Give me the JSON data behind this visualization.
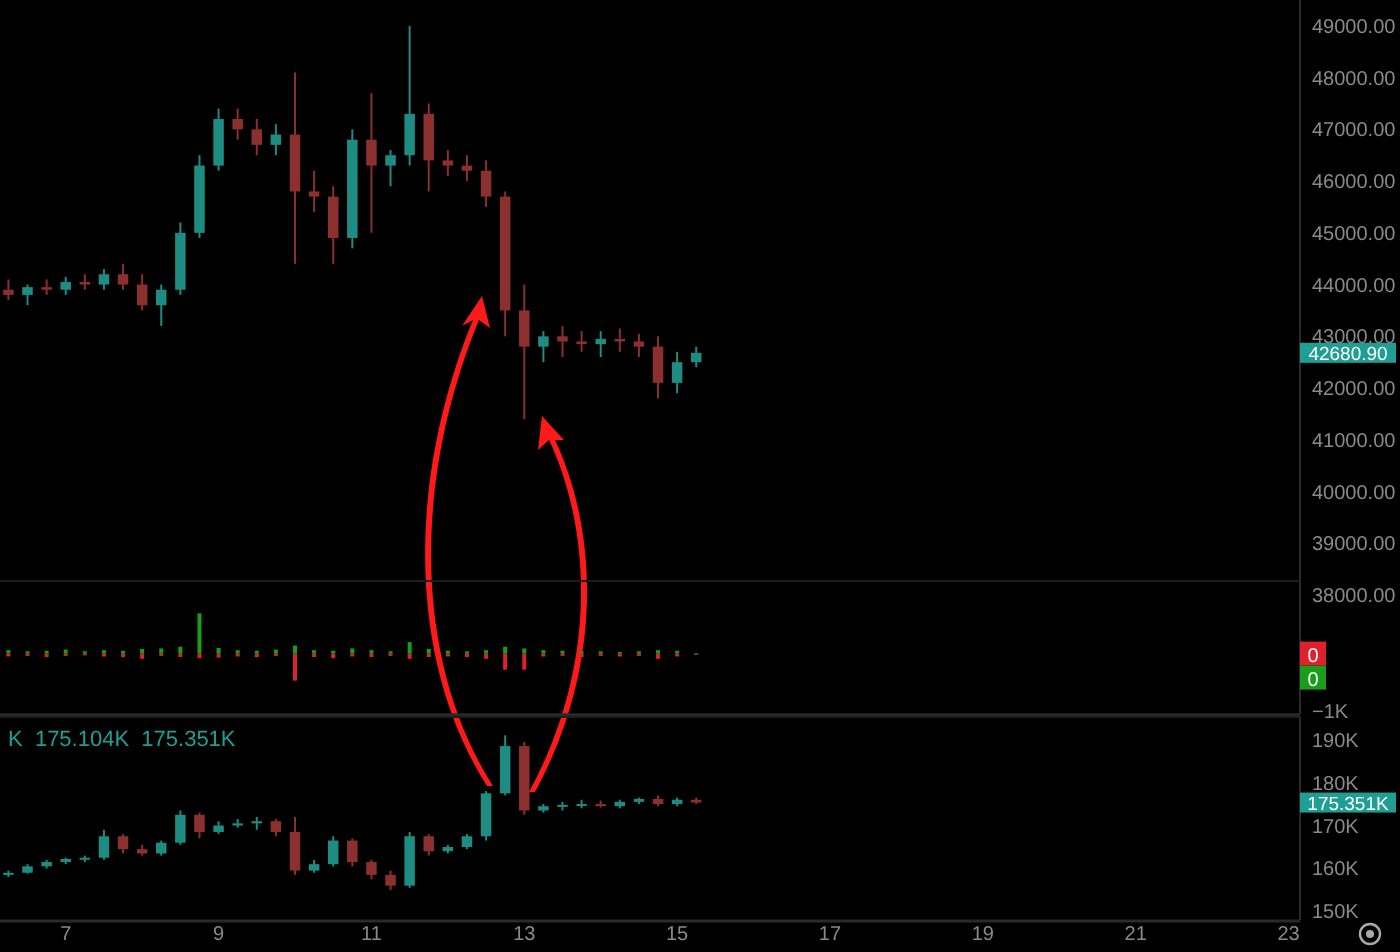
{
  "chart_data": [
    {
      "type": "candlestick",
      "xlim": [
        6.14,
        23.15
      ],
      "tick_labels": "y",
      "ylim": [
        35700,
        49500
      ],
      "yticks": [
        {
          "value": 38000,
          "label": "38000.00"
        },
        {
          "value": 39000,
          "label": "39000.00"
        },
        {
          "value": 40000,
          "label": "40000.00"
        },
        {
          "value": 41000,
          "label": "41000.00"
        },
        {
          "value": 42000,
          "label": "42000.00"
        },
        {
          "value": 43000,
          "label": "43000.00"
        },
        {
          "value": 44000,
          "label": "44000.00"
        },
        {
          "value": 45000,
          "label": "45000.00"
        },
        {
          "value": 46000,
          "label": "46000.00"
        },
        {
          "value": 47000,
          "label": "47000.00"
        },
        {
          "value": 48000,
          "label": "48000.00"
        },
        {
          "value": 49000,
          "label": "49000.00"
        }
      ],
      "x": [
        6.25,
        6.5,
        6.75,
        7,
        7.25,
        7.5,
        7.75,
        8,
        8.25,
        8.5,
        8.75,
        9,
        9.25,
        9.5,
        9.75,
        10,
        10.25,
        10.5,
        10.75,
        11,
        11.25,
        11.5,
        11.75,
        12,
        12.25,
        12.5,
        12.75,
        13,
        13.25,
        13.5,
        13.75,
        14,
        14.25,
        14.5,
        14.75,
        15,
        15.25
      ],
      "ohlc": [
        [
          43900,
          44100,
          43700,
          43800
        ],
        [
          43800,
          44000,
          43600,
          43950
        ],
        [
          43950,
          44100,
          43800,
          43900
        ],
        [
          43900,
          44150,
          43800,
          44050
        ],
        [
          44050,
          44200,
          43900,
          44000
        ],
        [
          44000,
          44300,
          43900,
          44200
        ],
        [
          44200,
          44400,
          43900,
          44000
        ],
        [
          44000,
          44200,
          43500,
          43600
        ],
        [
          43600,
          44000,
          43200,
          43900
        ],
        [
          43900,
          45200,
          43800,
          45000
        ],
        [
          45000,
          46500,
          44900,
          46300
        ],
        [
          46300,
          47400,
          46200,
          47200
        ],
        [
          47200,
          47400,
          46800,
          47000
        ],
        [
          47000,
          47200,
          46500,
          46700
        ],
        [
          46700,
          47100,
          46500,
          46900
        ],
        [
          46900,
          48100,
          44400,
          45800
        ],
        [
          45800,
          46200,
          45400,
          45700
        ],
        [
          45700,
          45900,
          44400,
          44900
        ],
        [
          44900,
          47000,
          44700,
          46800
        ],
        [
          46800,
          47700,
          45000,
          46300
        ],
        [
          46300,
          46600,
          45900,
          46500
        ],
        [
          46500,
          49000,
          46300,
          47300
        ],
        [
          47300,
          47500,
          45800,
          46400
        ],
        [
          46400,
          46600,
          46100,
          46300
        ],
        [
          46300,
          46500,
          46000,
          46200
        ],
        [
          46200,
          46400,
          45500,
          45700
        ],
        [
          45700,
          45800,
          43000,
          43500
        ],
        [
          43500,
          44000,
          41400,
          42800
        ],
        [
          42800,
          43100,
          42500,
          43000
        ],
        [
          43000,
          43200,
          42600,
          42900
        ],
        [
          42900,
          43100,
          42700,
          42850
        ],
        [
          42850,
          43100,
          42600,
          42950
        ],
        [
          42950,
          43150,
          42700,
          42900
        ],
        [
          42900,
          43050,
          42600,
          42800
        ],
        [
          42800,
          43000,
          41800,
          42100
        ],
        [
          42100,
          42700,
          41900,
          42500
        ],
        [
          42500,
          42800,
          42400,
          42680.9
        ]
      ],
      "colors": [
        "#8c2f2f",
        "#1e8c82",
        "#8c2f2f",
        "#1e8c82",
        "#8c2f2f",
        "#1e8c82",
        "#8c2f2f",
        "#8c2f2f",
        "#1e8c82",
        "#1e8c82",
        "#1e8c82",
        "#1e8c82",
        "#8c2f2f",
        "#8c2f2f",
        "#1e8c82",
        "#8c2f2f",
        "#8c2f2f",
        "#8c2f2f",
        "#1e8c82",
        "#8c2f2f",
        "#1e8c82",
        "#1e8c82",
        "#8c2f2f",
        "#8c2f2f",
        "#8c2f2f",
        "#8c2f2f",
        "#8c2f2f",
        "#8c2f2f",
        "#1e8c82",
        "#8c2f2f",
        "#8c2f2f",
        "#1e8c82",
        "#8c2f2f",
        "#8c2f2f",
        "#8c2f2f",
        "#1e8c82",
        "#1e8c82"
      ],
      "annotations": [
        "42680.90"
      ]
    },
    {
      "type": "bar",
      "xlim": [
        6.14,
        23.15
      ],
      "tick_labels": "y",
      "ylim": [
        -1050,
        1280
      ],
      "yticks": [
        {
          "value": -1000,
          "label": "−1K"
        },
        {
          "value": 0,
          "label": "0"
        }
      ],
      "x": [
        6.25,
        6.5,
        6.75,
        7,
        7.25,
        7.5,
        7.75,
        8,
        8.25,
        8.5,
        8.75,
        9,
        9.25,
        9.5,
        9.75,
        10,
        10.25,
        10.5,
        10.75,
        11,
        11.25,
        11.5,
        11.75,
        12,
        12.25,
        12.5,
        12.75,
        13,
        13.25,
        13.5,
        13.75,
        14,
        14.25,
        14.5,
        14.75,
        15,
        15.25
      ],
      "series": [
        {
          "type": "bar",
          "color": "#e0202c",
          "values": [
            -50,
            -40,
            -60,
            -40,
            -30,
            -50,
            -60,
            -90,
            -40,
            -60,
            -80,
            -70,
            -50,
            -60,
            -40,
            -470,
            -60,
            -80,
            -50,
            -60,
            -40,
            -90,
            -60,
            -50,
            -60,
            -90,
            -280,
            -280,
            -50,
            -40,
            -60,
            -40,
            -50,
            -40,
            -90,
            -50,
            0
          ]
        },
        {
          "type": "bar",
          "color": "#1a9e1a",
          "values": [
            60,
            40,
            50,
            70,
            40,
            60,
            50,
            80,
            90,
            120,
            700,
            100,
            60,
            50,
            70,
            140,
            60,
            50,
            90,
            60,
            40,
            200,
            80,
            50,
            40,
            60,
            120,
            90,
            60,
            50,
            40,
            40,
            30,
            40,
            60,
            50,
            0
          ]
        }
      ],
      "annotations": [
        "0"
      ]
    },
    {
      "type": "candlestick",
      "xlim": [
        6.14,
        23.15
      ],
      "xticks": [
        7,
        9,
        11,
        13,
        15,
        17,
        19,
        21,
        23
      ],
      "subtitle": "K  175.104K  175.351K",
      "ylim": [
        148000,
        195500
      ],
      "yticks": [
        {
          "value": 150000,
          "label": "150K"
        },
        {
          "value": 160000,
          "label": "160K"
        },
        {
          "value": 170000,
          "label": "170K"
        },
        {
          "value": 180000,
          "label": "180K"
        },
        {
          "value": 190000,
          "label": "190K"
        }
      ],
      "x": [
        6.25,
        6.5,
        6.75,
        7,
        7.25,
        7.5,
        7.75,
        8,
        8.25,
        8.5,
        8.75,
        9,
        9.25,
        9.5,
        9.75,
        10,
        10.25,
        10.5,
        10.75,
        11,
        11.25,
        11.5,
        11.75,
        12,
        12.25,
        12.5,
        12.75,
        13,
        13.25,
        13.5,
        13.75,
        14,
        14.25,
        14.5,
        14.75,
        15,
        15.25
      ],
      "ohlc": [
        [
          158500,
          159500,
          158000,
          159000
        ],
        [
          159000,
          161000,
          158800,
          160500
        ],
        [
          160500,
          162000,
          160000,
          161500
        ],
        [
          161500,
          162500,
          161000,
          162200
        ],
        [
          162200,
          163000,
          161500,
          162500
        ],
        [
          162500,
          169000,
          162000,
          167500
        ],
        [
          167500,
          168000,
          163500,
          164500
        ],
        [
          164500,
          165500,
          163000,
          163500
        ],
        [
          163500,
          166500,
          163000,
          166000
        ],
        [
          166000,
          173500,
          165500,
          172500
        ],
        [
          172500,
          173000,
          167000,
          168500
        ],
        [
          168500,
          171000,
          168000,
          170000
        ],
        [
          170000,
          171500,
          169500,
          170500
        ],
        [
          170500,
          172000,
          169000,
          171000
        ],
        [
          171000,
          171500,
          167500,
          168500
        ],
        [
          168500,
          172000,
          158500,
          159500
        ],
        [
          159500,
          162000,
          159000,
          161000
        ],
        [
          161000,
          167500,
          160500,
          166500
        ],
        [
          166500,
          167000,
          160500,
          161500
        ],
        [
          161500,
          162000,
          157500,
          158500
        ],
        [
          158500,
          159500,
          155000,
          156000
        ],
        [
          156000,
          168500,
          155500,
          167500
        ],
        [
          167500,
          168000,
          163000,
          164000
        ],
        [
          164000,
          165500,
          163500,
          165000
        ],
        [
          165000,
          168000,
          164500,
          167500
        ],
        [
          167500,
          178000,
          166500,
          177500
        ],
        [
          177500,
          191000,
          177000,
          188500
        ],
        [
          188500,
          189500,
          172500,
          173500
        ],
        [
          173500,
          175000,
          173000,
          174500
        ],
        [
          174500,
          175500,
          173500,
          174800
        ],
        [
          174800,
          176000,
          174000,
          175000
        ],
        [
          175000,
          175800,
          174200,
          174500
        ],
        [
          174500,
          176000,
          174000,
          175500
        ],
        [
          175500,
          176500,
          175000,
          176200
        ],
        [
          176200,
          177000,
          174500,
          175000
        ],
        [
          175000,
          176500,
          174500,
          176000
        ],
        [
          176000,
          176500,
          175000,
          175351
        ]
      ],
      "colors": [
        "#1e8c82",
        "#1e8c82",
        "#1e8c82",
        "#1e8c82",
        "#1e8c82",
        "#1e8c82",
        "#8c2f2f",
        "#8c2f2f",
        "#1e8c82",
        "#1e8c82",
        "#8c2f2f",
        "#1e8c82",
        "#1e8c82",
        "#1e8c82",
        "#8c2f2f",
        "#8c2f2f",
        "#1e8c82",
        "#1e8c82",
        "#8c2f2f",
        "#8c2f2f",
        "#8c2f2f",
        "#1e8c82",
        "#8c2f2f",
        "#1e8c82",
        "#1e8c82",
        "#1e8c82",
        "#1e8c82",
        "#8c2f2f",
        "#1e8c82",
        "#1e8c82",
        "#1e8c82",
        "#8c2f2f",
        "#1e8c82",
        "#1e8c82",
        "#8c2f2f",
        "#1e8c82",
        "#8c2f2f"
      ],
      "annotations": [
        "175.351K"
      ]
    }
  ]
}
